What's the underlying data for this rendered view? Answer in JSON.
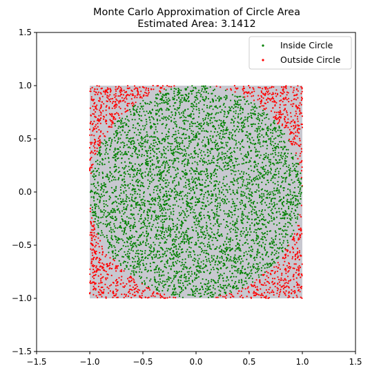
{
  "chart_data": {
    "type": "scatter",
    "title": "Monte Carlo Approximation of Circle Area",
    "subtitle": "Estimated Area: 3.1412",
    "xlabel": "",
    "ylabel": "",
    "xlim": [
      -1.5,
      1.5
    ],
    "ylim": [
      -1.5,
      1.5
    ],
    "xticks": [
      -1.5,
      -1.0,
      -0.5,
      0.0,
      0.5,
      1.0,
      1.5
    ],
    "yticks": [
      -1.5,
      -1.0,
      -0.5,
      0.0,
      0.5,
      1.0,
      1.5
    ],
    "xtick_labels": [
      "−1.5",
      "−1.0",
      "−0.5",
      "0.0",
      "0.5",
      "1.0",
      "1.5"
    ],
    "ytick_labels": [
      "−1.5",
      "−1.0",
      "−0.5",
      "0.0",
      "0.5",
      "1.0",
      "1.5"
    ],
    "grid": false,
    "legend_position": "top-right",
    "sampling_square": {
      "x": [
        -1,
        1
      ],
      "y": [
        -1,
        1
      ],
      "color": "#c8c8d0"
    },
    "circle": {
      "center": [
        0,
        0
      ],
      "radius": 1
    },
    "series": [
      {
        "name": "Inside Circle",
        "color": "#008000",
        "region": "x^2 + y^2 <= 1"
      },
      {
        "name": "Outside Circle",
        "color": "#ff0000",
        "region": "x^2 + y^2 > 1 within square"
      }
    ]
  }
}
